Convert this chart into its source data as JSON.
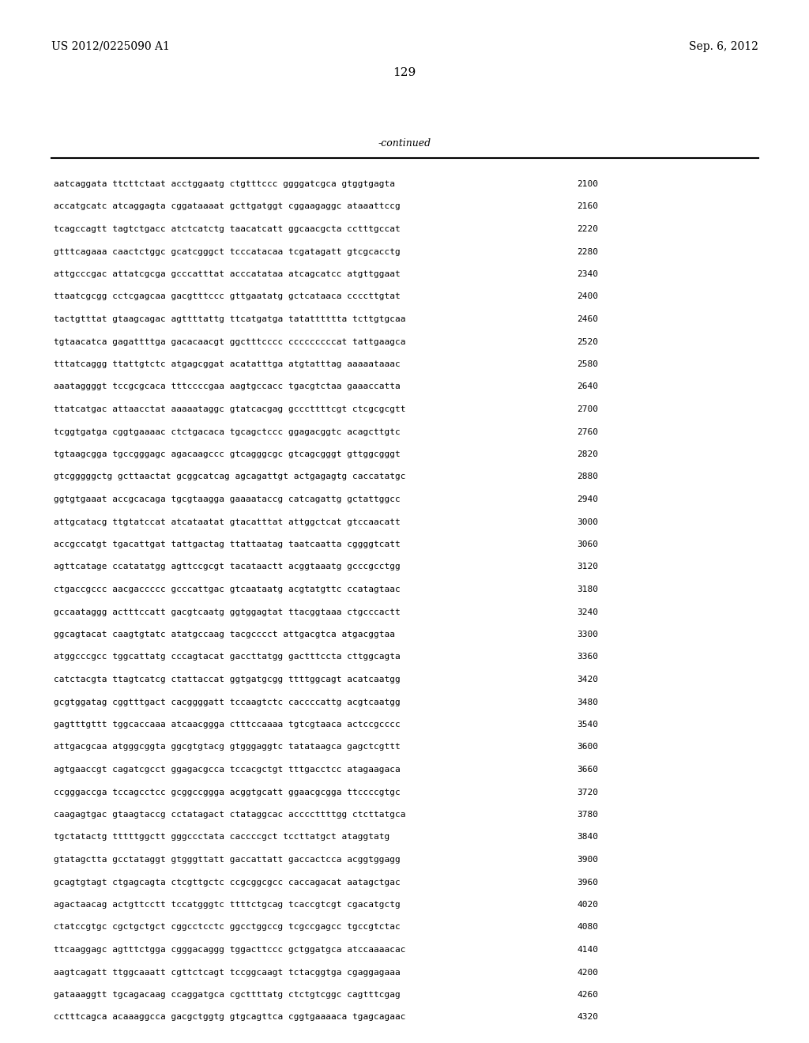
{
  "header_left": "US 2012/0225090 A1",
  "header_right": "Sep. 6, 2012",
  "page_number": "129",
  "continued_label": "-continued",
  "background_color": "#ffffff",
  "text_color": "#000000",
  "font_size": 8.0,
  "header_font_size": 10,
  "page_num_font_size": 11,
  "sequences": [
    [
      "aatcaggata ttcttctaat acctggaatg ctgtttccc ggggatcgca gtggtgagta",
      "2100"
    ],
    [
      "accatgcatc atcaggagta cggataaaat gcttgatggt cggaagaggc ataaattccg",
      "2160"
    ],
    [
      "tcagccagtt tagtctgacc atctcatctg taacatcatt ggcaacgcta cctttgccat",
      "2220"
    ],
    [
      "gtttcagaaa caactctggc gcatcgggct tcccatacaa tcgatagatt gtcgcacctg",
      "2280"
    ],
    [
      "attgcccgac attatcgcga gcccatttat acccatataa atcagcatcc atgttggaat",
      "2340"
    ],
    [
      "ttaatcgcgg cctcgagcaa gacgtttccc gttgaatatg gctcataaca ccccttgtat",
      "2400"
    ],
    [
      "tactgtttat gtaagcagac agttttattg ttcatgatga tatatttttta tcttgtgcaa",
      "2460"
    ],
    [
      "tgtaacatca gagattttga gacacaacgt ggctttcccc cccccccccat tattgaagca",
      "2520"
    ],
    [
      "tttatcaggg ttattgtctc atgagcggat acatatttga atgtatttag aaaaataaac",
      "2580"
    ],
    [
      "aaataggggt tccgcgcaca tttccccgaa aagtgccacc tgacgtctaa gaaaccatta",
      "2640"
    ],
    [
      "ttatcatgac attaacctat aaaaataggc gtatcacgag gcccttttcgt ctcgcgcgtt",
      "2700"
    ],
    [
      "tcggtgatga cggtgaaaac ctctgacaca tgcagctccc ggagacggtc acagcttgtc",
      "2760"
    ],
    [
      "tgtaagcgga tgccgggagc agacaagccc gtcagggcgc gtcagcgggt gttggcgggt",
      "2820"
    ],
    [
      "gtcgggggctg gcttaactat gcggcatcag agcagattgt actgagagtg caccatatgc",
      "2880"
    ],
    [
      "ggtgtgaaat accgcacaga tgcgtaagga gaaaataccg catcagattg gctattggcc",
      "2940"
    ],
    [
      "attgcatacg ttgtatccat atcataatat gtacatttat attggctcat gtccaacatt",
      "3000"
    ],
    [
      "accgccatgt tgacattgat tattgactag ttattaatag taatcaatta cggggtcatt",
      "3060"
    ],
    [
      "agttcatage ccatatatgg agttccgcgt tacataactt acggtaaatg gcccgcctgg",
      "3120"
    ],
    [
      "ctgaccgccc aacgaccccc gcccattgac gtcaataatg acgtatgttc ccatagtaac",
      "3180"
    ],
    [
      "gccaataggg actttccatt gacgtcaatg ggtggagtat ttacggtaaa ctgcccactt",
      "3240"
    ],
    [
      "ggcagtacat caagtgtatc atatgccaag tacgcccct attgacgtca atgacggtaa",
      "3300"
    ],
    [
      "atggcccgcc tggcattatg cccagtacat gaccttatgg gactttccta cttggcagta",
      "3360"
    ],
    [
      "catctacgta ttagtcatcg ctattaccat ggtgatgcgg ttttggcagt acatcaatgg",
      "3420"
    ],
    [
      "gcgtggatag cggtttgact cacggggatt tccaagtctc caccccattg acgtcaatgg",
      "3480"
    ],
    [
      "gagtttgttt tggcaccaaa atcaacggga ctttccaaaa tgtcgtaaca actccgcccc",
      "3540"
    ],
    [
      "attgacgcaa atgggcggta ggcgtgtacg gtgggaggtc tatataagca gagctcgttt",
      "3600"
    ],
    [
      "agtgaaccgt cagatcgcct ggagacgcca tccacgctgt tttgacctcc atagaagaca",
      "3660"
    ],
    [
      "ccgggaccga tccagcctcc gcggccggga acggtgcatt ggaacgcgga ttccccgtgc",
      "3720"
    ],
    [
      "caagagtgac gtaagtaccg cctatagact ctataggcac accccttttgg ctcttatgca",
      "3780"
    ],
    [
      "tgctatactg tttttggctt gggccctata caccccgct tccttatgct ataggtatg",
      "3840"
    ],
    [
      "gtatagctta gcctataggt gtgggttatt gaccattatt gaccactcca acggtggagg",
      "3900"
    ],
    [
      "gcagtgtagt ctgagcagta ctcgttgctc ccgcggcgcc caccagacat aatagctgac",
      "3960"
    ],
    [
      "agactaacag actgttcctt tccatgggtc ttttctgcag tcaccgtcgt cgacatgctg",
      "4020"
    ],
    [
      "ctatccgtgc cgctgctgct cggcctcctc ggcctggccg tcgccgagcc tgccgtctac",
      "4080"
    ],
    [
      "ttcaaggagc agtttctgga cgggacaggg tggacttccc gctggatgca atccaaaacac",
      "4140"
    ],
    [
      "aagtcagatt ttggcaaatt cgttctcagt tccggcaagt tctacggtga cgaggagaaa",
      "4200"
    ],
    [
      "gataaaggtt tgcagacaag ccaggatgca cgcttttatg ctctgtcggc cagtttcgag",
      "4260"
    ],
    [
      "cctttcagca acaaaggcca gacgctggtg gtgcagttca cggtgaaaaca tgagcagaac",
      "4320"
    ]
  ]
}
